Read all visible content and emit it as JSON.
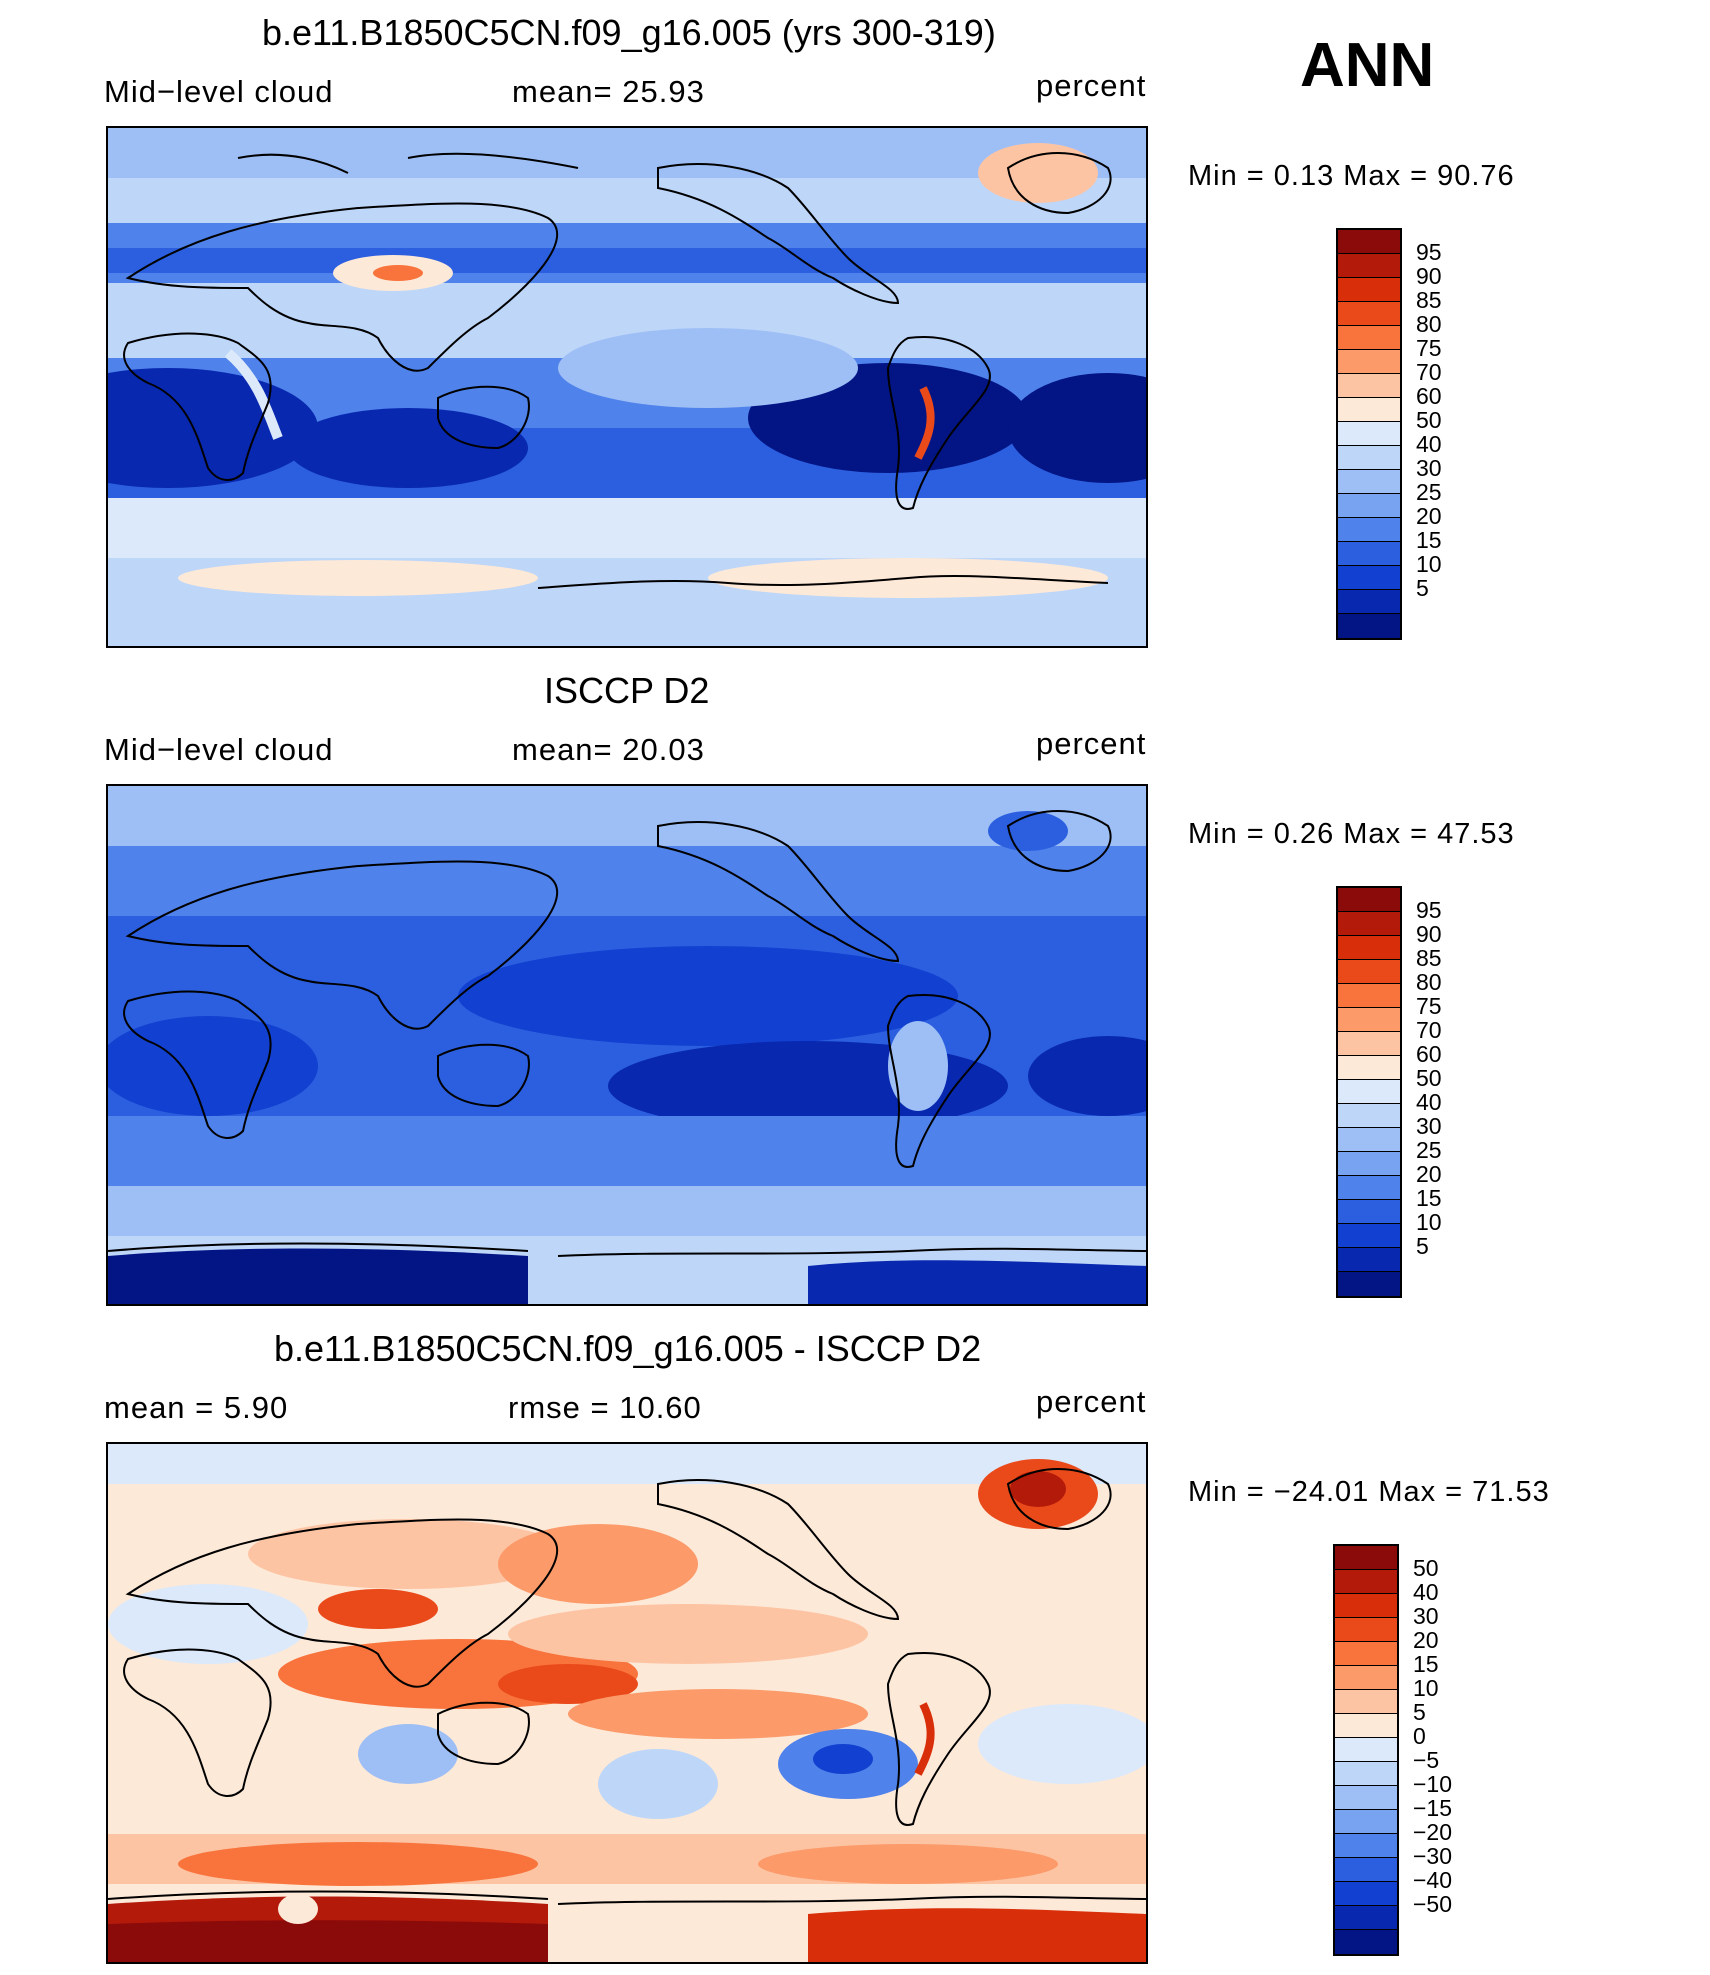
{
  "season": "ANN",
  "colors": {
    "abs_scale": [
      "#8b0a0a",
      "#b41a0a",
      "#d92e0a",
      "#ea4a1a",
      "#f9743c",
      "#fc9a6a",
      "#fdc4a4",
      "#fde9d8",
      "#dbe9fb",
      "#bed6f8",
      "#9ebff5",
      "#78a3f1",
      "#4f82eb",
      "#2b5fe0",
      "#1240d0",
      "#0828b0",
      "#031585"
    ],
    "diff_scale": [
      "#8b0a0a",
      "#b41a0a",
      "#d92e0a",
      "#ea4a1a",
      "#f9743c",
      "#fc9a6a",
      "#fdc4a4",
      "#fde9d8",
      "#dbe9fb",
      "#bed6f8",
      "#9ebff5",
      "#78a3f1",
      "#4f82eb",
      "#2b5fe0",
      "#1240d0",
      "#0828b0",
      "#031585"
    ]
  },
  "panels": [
    {
      "title": "b.e11.B1850C5CN.f09_g16.005 (yrs 300-319)",
      "left": "Mid−level cloud",
      "middle": "mean=   25.93",
      "right": "percent",
      "minmax": "Min =    0.13 Max =   90.76",
      "levels": [
        "95",
        "90",
        "85",
        "80",
        "75",
        "70",
        "60",
        "50",
        "40",
        "30",
        "25",
        "20",
        "15",
        "10",
        "5"
      ],
      "scale": "abs"
    },
    {
      "title": "ISCCP D2",
      "left": "Mid−level cloud",
      "middle": "mean=   20.03",
      "right": "percent",
      "minmax": "Min =    0.26 Max =   47.53",
      "levels": [
        "95",
        "90",
        "85",
        "80",
        "75",
        "70",
        "60",
        "50",
        "40",
        "30",
        "25",
        "20",
        "15",
        "10",
        "5"
      ],
      "scale": "abs"
    },
    {
      "title": "b.e11.B1850C5CN.f09_g16.005 - ISCCP D2",
      "left": "mean =    5.90",
      "middle": "rmse =   10.60",
      "right": "percent",
      "minmax": "Min = −24.01 Max =   71.53",
      "levels": [
        "50",
        "40",
        "30",
        "20",
        "15",
        "10",
        "5",
        "0",
        "−5",
        "−10",
        "−15",
        "−20",
        "−30",
        "−40",
        "−50"
      ],
      "scale": "diff"
    }
  ]
}
